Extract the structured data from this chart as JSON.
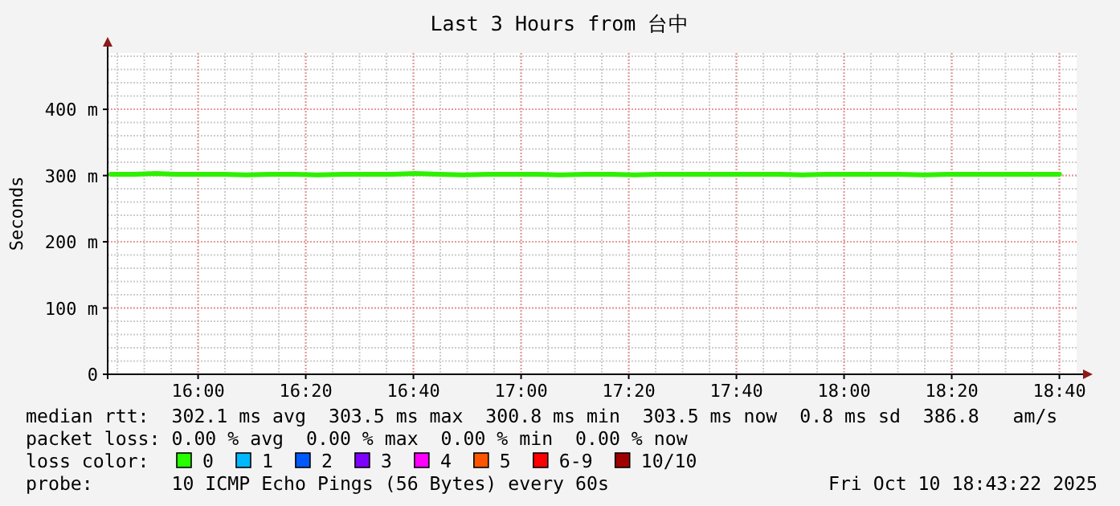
{
  "chart_data": {
    "type": "line",
    "title": "Last 3 Hours from 台中",
    "ylabel": "Seconds",
    "x": [
      15.73,
      15.8,
      15.87,
      15.93,
      16.0,
      16.08,
      16.15,
      16.22,
      16.3,
      16.37,
      16.45,
      16.52,
      16.6,
      16.67,
      16.75,
      16.82,
      16.9,
      16.97,
      17.05,
      17.12,
      17.2,
      17.27,
      17.35,
      17.42,
      17.5,
      17.57,
      17.65,
      17.72,
      17.8,
      17.87,
      17.95,
      18.02,
      18.1,
      18.17,
      18.25,
      18.32,
      18.4,
      18.47,
      18.55,
      18.6,
      18.667
    ],
    "series": [
      {
        "color": "#2ef000",
        "values": [
          302,
          302,
          303,
          302,
          302,
          302,
          301,
          302,
          302,
          301,
          302,
          302,
          302,
          303,
          302,
          301,
          302,
          302,
          302,
          301,
          302,
          302,
          301,
          302,
          302,
          302,
          302,
          302,
          302,
          301,
          302,
          302,
          302,
          302,
          301,
          302,
          302,
          302,
          302,
          302,
          302
        ]
      }
    ],
    "xlim": [
      15.72,
      18.72
    ],
    "xticks": [
      {
        "value": 16,
        "label": "16:00"
      },
      {
        "value": 16.333333,
        "label": "16:20"
      },
      {
        "value": 16.666667,
        "label": "16:40"
      },
      {
        "value": 17,
        "label": "17:00"
      },
      {
        "value": 17.333333,
        "label": "17:20"
      },
      {
        "value": 17.666667,
        "label": "17:40"
      },
      {
        "value": 18,
        "label": "18:00"
      },
      {
        "value": 18.333333,
        "label": "18:20"
      },
      {
        "value": 18.666667,
        "label": "18:40"
      }
    ],
    "ylim": [
      0,
      485
    ],
    "yticks": [
      0,
      {
        "value": 100,
        "label": "100 m"
      },
      {
        "value": 200,
        "label": "200 m"
      },
      {
        "value": 300,
        "label": "300 m"
      },
      {
        "value": 400,
        "label": "400 m"
      }
    ],
    "grid": true,
    "marker": "none",
    "line_style": "solid",
    "annotations": [
      "median rtt:  302.1 ms avg  303.5 ms max  300.8 ms min  303.5 ms now  0.8 ms sd  386.8   am/s",
      "packet loss: 0.00 % avg  0.00 % max  0.00 % min  0.00 % now",
      "loss color:",
      "0",
      "1",
      "2",
      "3",
      "4",
      "5",
      "6-9",
      "10/10",
      "probe:       10 ICMP Echo Pings (56 Bytes) every 60s",
      "Fri Oct 10 18:43:22 2025"
    ]
  }
}
